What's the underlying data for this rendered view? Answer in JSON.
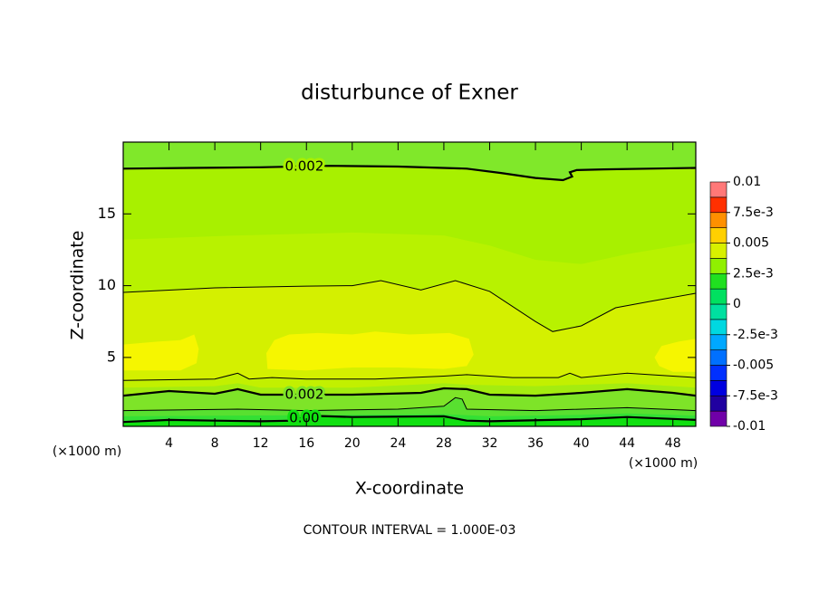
{
  "chart_data": {
    "type": "contour",
    "title": "disturbunce of Exner",
    "xlabel": "X-coordinate",
    "ylabel": "Z-coordinate",
    "x_unit_label": "(×1000 m)",
    "y_unit_label": "(×1000 m)",
    "footer": "CONTOUR INTERVAL = 1.000E-03",
    "xlim": [
      0,
      50
    ],
    "ylim": [
      0.2,
      20
    ],
    "xticks": [
      4,
      8,
      12,
      16,
      20,
      24,
      28,
      32,
      36,
      40,
      44,
      48
    ],
    "yticks": [
      5,
      10,
      15
    ],
    "grid": false,
    "background": "#80e82a",
    "regions": [
      {
        "fill": "below",
        "color": "#a8f000",
        "line": {
          "bold": true,
          "label": "0.002"
        },
        "x": [
          0,
          6,
          12,
          18,
          24,
          30,
          33,
          36,
          38.4,
          39.2,
          39.0,
          39.6,
          42,
          46,
          50
        ],
        "y": [
          18.15,
          18.2,
          18.25,
          18.35,
          18.3,
          18.15,
          17.85,
          17.5,
          17.35,
          17.6,
          17.9,
          18.05,
          18.1,
          18.15,
          18.2
        ]
      },
      {
        "fill": "below",
        "color": "#b8f200",
        "x": [
          0,
          10,
          20,
          28,
          32,
          36,
          40,
          44,
          50
        ],
        "y": [
          13.2,
          13.5,
          13.7,
          13.5,
          12.8,
          11.8,
          11.5,
          12.2,
          13.0
        ]
      },
      {
        "fill": "below",
        "color": "#d4f000",
        "line": {
          "bold": false
        },
        "x": [
          0,
          8,
          16,
          20,
          22.5,
          26,
          29,
          32,
          36,
          37.5,
          40,
          43,
          46,
          50
        ],
        "y": [
          9.53,
          9.85,
          9.97,
          10.0,
          10.35,
          9.7,
          10.35,
          9.6,
          7.5,
          6.8,
          7.2,
          8.46,
          8.9,
          9.47
        ]
      },
      {
        "fill": "inside",
        "color": "#f6f600",
        "x": [
          0,
          5,
          6.4,
          6.6,
          6.2,
          5,
          3,
          1.5,
          0
        ],
        "y": [
          4.1,
          4.1,
          4.6,
          5.6,
          6.6,
          6.2,
          6.1,
          6.0,
          5.9
        ]
      },
      {
        "fill": "inside",
        "color": "#f6f600",
        "x": [
          12.6,
          16,
          20,
          24,
          28,
          30,
          30.6,
          30.2,
          28.5,
          25,
          22,
          20,
          17,
          14.5,
          13.2,
          12.5
        ],
        "y": [
          4.2,
          4.1,
          4.3,
          4.3,
          4.2,
          4.4,
          5.2,
          6.3,
          6.7,
          6.6,
          6.8,
          6.6,
          6.7,
          6.6,
          6.2,
          5.3
        ]
      },
      {
        "fill": "inside",
        "color": "#f6f600",
        "x": [
          50,
          48,
          46.8,
          46.4,
          47,
          48.5,
          50
        ],
        "y": [
          4.0,
          4.0,
          4.4,
          5.0,
          5.8,
          6.1,
          6.3
        ]
      },
      {
        "fill": "below",
        "color": "#c2f000",
        "line": {
          "bold": false
        },
        "x": [
          0,
          8,
          10,
          11,
          13,
          16,
          22,
          28,
          30,
          34,
          38,
          39,
          40,
          44,
          48,
          50
        ],
        "y": [
          3.4,
          3.5,
          3.9,
          3.5,
          3.6,
          3.5,
          3.5,
          3.7,
          3.8,
          3.6,
          3.6,
          3.9,
          3.6,
          3.9,
          3.7,
          3.6
        ]
      },
      {
        "fill": "below",
        "color": "#a4ec10",
        "x": [
          0,
          8,
          10,
          12,
          20,
          28,
          30,
          36,
          44,
          50
        ],
        "y": [
          2.9,
          3.0,
          3.2,
          2.9,
          2.9,
          3.2,
          3.1,
          3.0,
          3.2,
          2.9
        ]
      },
      {
        "fill": "below",
        "color": "#7ee428",
        "line": {
          "bold": true,
          "label": "0.002"
        },
        "x": [
          0,
          4,
          8,
          10,
          12,
          16,
          20,
          26,
          28,
          30,
          32,
          36,
          40,
          44,
          48,
          50
        ],
        "y": [
          2.34,
          2.66,
          2.47,
          2.79,
          2.41,
          2.41,
          2.41,
          2.53,
          2.85,
          2.79,
          2.41,
          2.34,
          2.53,
          2.79,
          2.53,
          2.34
        ]
      },
      {
        "fill": "below",
        "color": "#58e030",
        "line": {
          "bold": false
        },
        "x": [
          0,
          10,
          16,
          24,
          28,
          29,
          29.6,
          30,
          36,
          44,
          50
        ],
        "y": [
          1.3,
          1.4,
          1.3,
          1.4,
          1.6,
          2.2,
          2.1,
          1.4,
          1.3,
          1.5,
          1.3
        ]
      },
      {
        "fill": "below",
        "color": "#34e034",
        "x": [
          0,
          10,
          20,
          28,
          32,
          40,
          44,
          50
        ],
        "y": [
          0.9,
          0.95,
          1.0,
          1.05,
          0.9,
          1.0,
          1.1,
          0.95
        ]
      },
      {
        "fill": "below",
        "color": "#10e010",
        "line": {
          "bold": true,
          "label": "0.00"
        },
        "x": [
          0,
          4,
          8,
          12,
          15,
          16,
          20,
          28,
          30,
          32,
          40,
          44,
          50
        ],
        "y": [
          0.5,
          0.65,
          0.6,
          0.55,
          0.6,
          0.95,
          0.85,
          0.9,
          0.6,
          0.55,
          0.7,
          0.85,
          0.65
        ]
      }
    ],
    "colorbar": {
      "levels": [
        -0.01,
        -0.00875,
        -0.0075,
        -0.00625,
        -0.005,
        -0.00375,
        -0.0025,
        -0.00125,
        0,
        0.00125,
        0.0025,
        0.00375,
        0.005,
        0.00625,
        0.0075,
        0.00875,
        0.01
      ],
      "colors": [
        "#7000a8",
        "#2000a0",
        "#0000e0",
        "#0030ff",
        "#0070ff",
        "#00a8ff",
        "#00d8e0",
        "#00e0a0",
        "#00e060",
        "#20e020",
        "#90f000",
        "#d8f000",
        "#ffd000",
        "#ff9000",
        "#ff3000",
        "#ff7878"
      ],
      "ticks": [
        {
          "value": -0.01,
          "label": "-0.01"
        },
        {
          "value": -0.0075,
          "label": "-7.5e-3"
        },
        {
          "value": -0.005,
          "label": "-0.005"
        },
        {
          "value": -0.0025,
          "label": "-2.5e-3"
        },
        0,
        {
          "value": 0.0025,
          "label": "2.5e-3"
        },
        0.005,
        {
          "value": 0.0075,
          "label": "7.5e-3"
        },
        0.01
      ]
    }
  }
}
